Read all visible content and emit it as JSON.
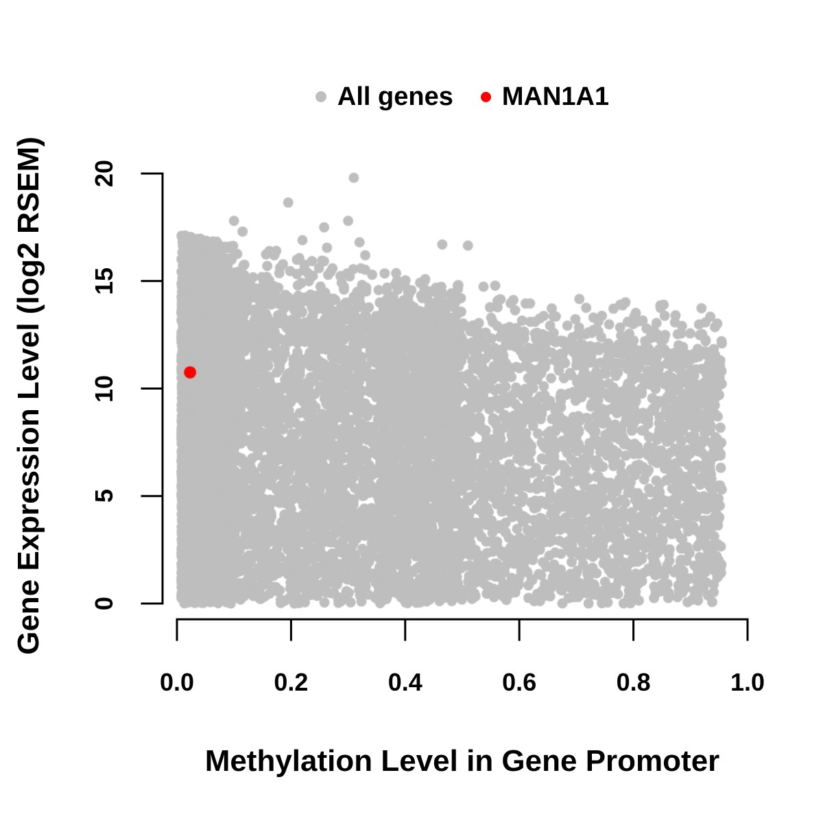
{
  "figure": {
    "background": "#ffffff",
    "text_color": "#000000",
    "axis_color": "#000000",
    "legend_position": "top-center"
  },
  "chart_data": {
    "type": "scatter",
    "title": "",
    "xlabel": "Methylation Level in Gene Promoter",
    "ylabel": "Gene Expression Level (log2 RSEM)",
    "xlim": [
      0,
      1
    ],
    "ylim": [
      0,
      20
    ],
    "grid": false,
    "legend_position": "top-center",
    "x_ticks": [
      {
        "value": 0.0,
        "label": "0.0"
      },
      {
        "value": 0.2,
        "label": "0.2"
      },
      {
        "value": 0.4,
        "label": "0.4"
      },
      {
        "value": 0.6,
        "label": "0.6"
      },
      {
        "value": 0.8,
        "label": "0.8"
      },
      {
        "value": 1.0,
        "label": "1.0"
      }
    ],
    "y_ticks": [
      {
        "value": 0,
        "label": "0"
      },
      {
        "value": 5,
        "label": "5"
      },
      {
        "value": 10,
        "label": "10"
      },
      {
        "value": 15,
        "label": "15"
      },
      {
        "value": 20,
        "label": "20"
      }
    ],
    "series": [
      {
        "name": "All genes",
        "color": "#bebebe",
        "marker": "circle",
        "marker_radius_px": 7.5,
        "n_points": 9000,
        "x_range": [
          0.005,
          0.955
        ],
        "y_range": [
          0,
          19.8
        ],
        "generation": {
          "seed": 11,
          "n_points": 9000,
          "x_mixture": [
            {
              "weight": 0.28,
              "base": 0.008,
              "scale": 0.092,
              "power": 1.5
            },
            {
              "weight": 0.42,
              "base": 0.02,
              "scale": 0.48,
              "power": 1.0
            },
            {
              "weight": 0.3,
              "base": 0.35,
              "scale": 0.605,
              "power": 0.9
            }
          ],
          "x_max": 0.955,
          "dense_top_envelope": {
            "a": 14.9,
            "b": -5.2,
            "c": 1.6
          },
          "y_power": 0.95,
          "tail_prob": 0.08,
          "tail_height": 2.3
        },
        "notable_points": [
          [
            0.31,
            19.8
          ],
          [
            0.195,
            18.65
          ],
          [
            0.1,
            17.8
          ],
          [
            0.3,
            17.8
          ],
          [
            0.258,
            17.5
          ],
          [
            0.115,
            17.3
          ],
          [
            0.22,
            16.9
          ],
          [
            0.32,
            16.8
          ],
          [
            0.465,
            16.7
          ],
          [
            0.51,
            16.65
          ],
          [
            0.263,
            16.55
          ],
          [
            0.08,
            16.5
          ],
          [
            0.174,
            16.4
          ],
          [
            0.33,
            16.2
          ],
          [
            0.04,
            16.1
          ],
          [
            0.02,
            15.9
          ],
          [
            0.853,
            13.9
          ],
          [
            0.66,
            13.35
          ],
          [
            0.73,
            13.3
          ],
          [
            0.79,
            13.1
          ],
          [
            0.905,
            11.6
          ]
        ]
      },
      {
        "name": "MAN1A1",
        "color": "#ff0000",
        "marker": "circle",
        "marker_radius_px": 9,
        "points": [
          [
            0.023,
            10.75
          ]
        ]
      }
    ]
  }
}
